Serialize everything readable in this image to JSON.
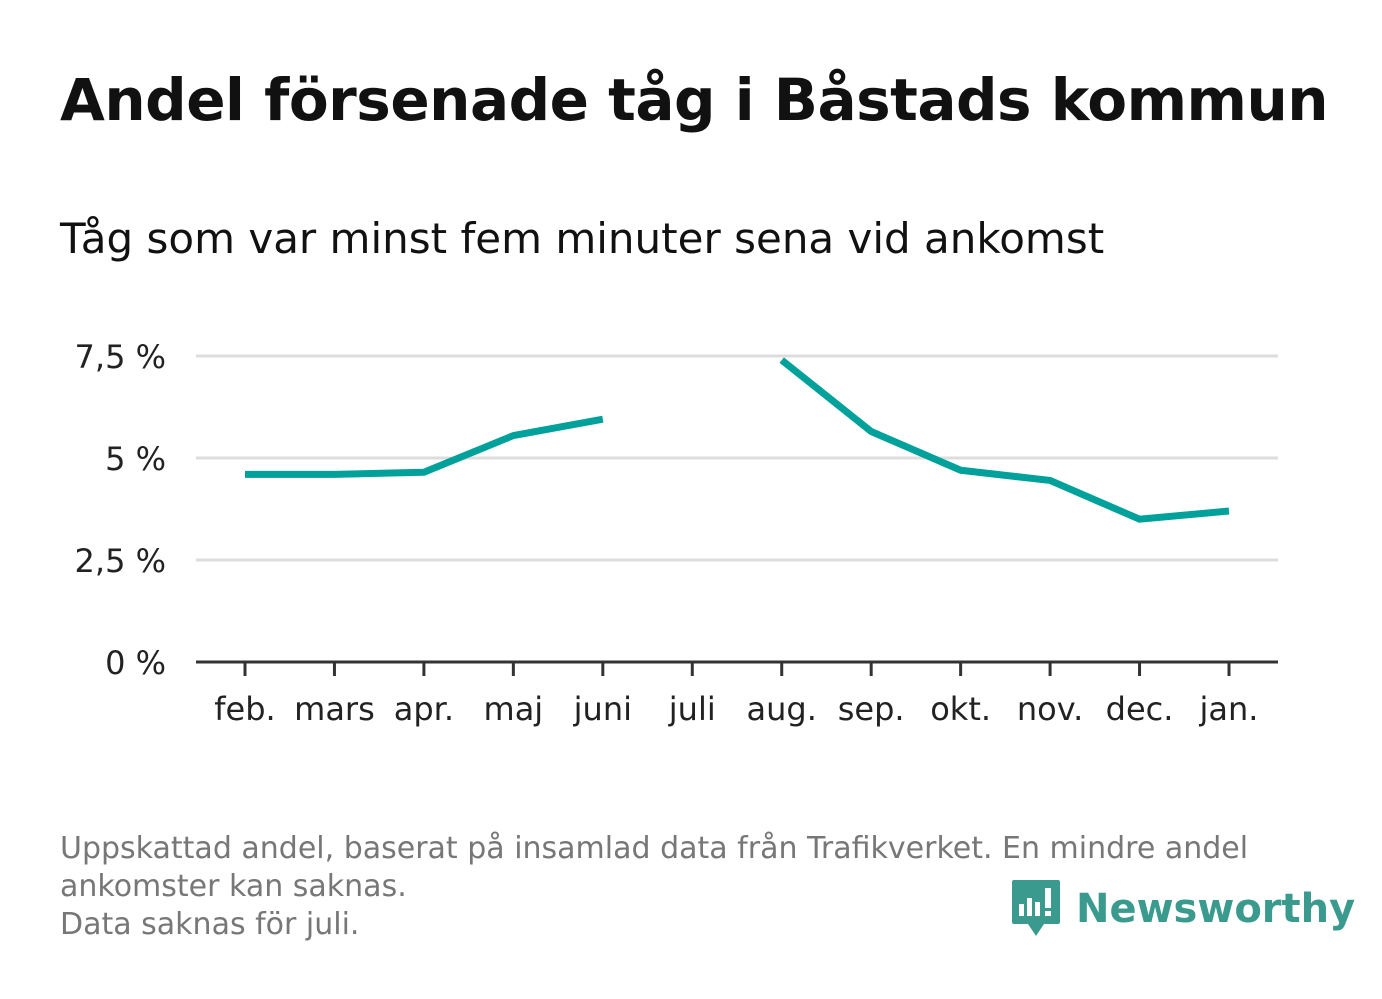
{
  "title": "Andel försenade tåg i Båstads kommun",
  "subtitle": "Tåg som var minst fem minuter sena vid ankomst",
  "footnote": {
    "line1": "Uppskattad andel, baserat på insamlad data från Trafikverket. En mindre andel",
    "line2": "ankomster kan saknas.",
    "line3": "Data saknas för juli."
  },
  "logo": {
    "text": "Newsworthy",
    "icon": "newsworthy-logo-icon",
    "color": "#3a9a8e"
  },
  "colors": {
    "line": "#00a19a",
    "grid": "#dddddd",
    "axis": "#333333",
    "text": "#222222"
  },
  "chart_data": {
    "type": "line",
    "categories": [
      "feb.",
      "mars",
      "apr.",
      "maj",
      "juni",
      "juli",
      "aug.",
      "sep.",
      "okt.",
      "nov.",
      "dec.",
      "jan."
    ],
    "series": [
      {
        "values": [
          4.6,
          4.6,
          4.65,
          5.55,
          5.95,
          null,
          7.4,
          5.65,
          4.7,
          4.45,
          3.5,
          3.7
        ]
      }
    ],
    "ylim": [
      0,
      7.5
    ],
    "yticks": [
      0,
      2.5,
      5,
      7.5
    ],
    "ytick_labels": [
      "0 %",
      "2,5 %",
      "5 %",
      "7,5 %"
    ],
    "grid": true,
    "xlabel": "",
    "ylabel": ""
  }
}
